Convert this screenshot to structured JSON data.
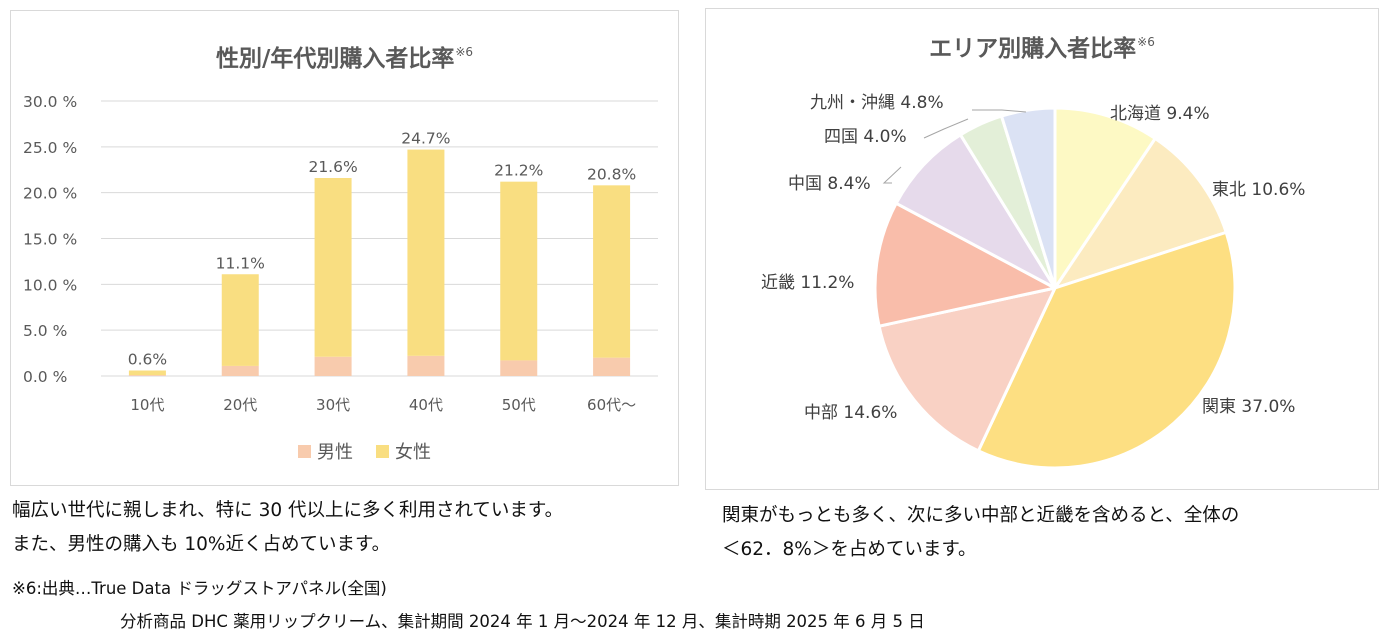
{
  "left_chart": {
    "title": "性別/年代別購入者比率",
    "title_note": "※6",
    "legend": {
      "male": "男性",
      "female": "女性"
    },
    "colors": {
      "male": "#f8cbad",
      "female": "#f9de81",
      "grid": "#d9d9d9",
      "text": "#595959"
    }
  },
  "right_chart": {
    "title": "エリア別購入者比率",
    "title_note": "※6"
  },
  "chart_data": [
    {
      "type": "bar",
      "stacked": true,
      "title": "性別/年代別購入者比率",
      "categories": [
        "10代",
        "20代",
        "30代",
        "40代",
        "50代",
        "60代～"
      ],
      "series": [
        {
          "name": "男性",
          "values": [
            0.1,
            1.1,
            2.1,
            2.2,
            1.7,
            2.0
          ]
        },
        {
          "name": "女性",
          "values": [
            0.5,
            10.0,
            19.5,
            22.5,
            19.5,
            18.8
          ]
        }
      ],
      "totals": [
        0.6,
        11.1,
        21.6,
        24.7,
        21.2,
        20.8
      ],
      "total_labels": [
        "0.6%",
        "11.1%",
        "21.6%",
        "24.7%",
        "21.2%",
        "20.8%"
      ],
      "ylim": [
        0,
        30
      ],
      "yticks": [
        0,
        5,
        10,
        15,
        20,
        25,
        30
      ],
      "ytick_labels": [
        "0.0 %",
        "5.0 %",
        "10.0 %",
        "15.0 %",
        "20.0 %",
        "25.0 %",
        "30.0 %"
      ],
      "grid": true,
      "legend": "bottom"
    },
    {
      "type": "pie",
      "title": "エリア別購入者比率",
      "labels": [
        "北海道",
        "東北",
        "関東",
        "中部",
        "近畿",
        "中国",
        "四国",
        "九州・沖縄"
      ],
      "values": [
        9.4,
        10.6,
        37.0,
        14.6,
        11.2,
        8.4,
        4.0,
        4.8
      ],
      "value_labels": [
        "9.4%",
        "10.6%",
        "37.0%",
        "14.6%",
        "11.2%",
        "8.4%",
        "4.0%",
        "4.8%"
      ],
      "colors": [
        "#fdf9c4",
        "#fcebc0",
        "#fddf82",
        "#f9d1c4",
        "#f9bdaa",
        "#e6daeb",
        "#e3efd8",
        "#dbe2f4"
      ],
      "start": "top",
      "direction": "clockwise"
    }
  ],
  "left_description": [
    "幅広い世代に親しまれ、特に 30 代以上に多く利用されています。",
    "また、男性の購入も 10%近く占めています。"
  ],
  "right_description": [
    "関東がもっとも多く、次に多い中部と近畿を含めると、全体の",
    "＜62．8%＞を占めています。"
  ],
  "footnote": {
    "line1": "※6:出典…True Data ドラッグストアパネル(全国)",
    "line2": "分析商品  DHC 薬用リップクリーム、集計期間  2024 年 1 月～2024 年 12 月、集計時期  2025 年 6 月 5 日"
  }
}
